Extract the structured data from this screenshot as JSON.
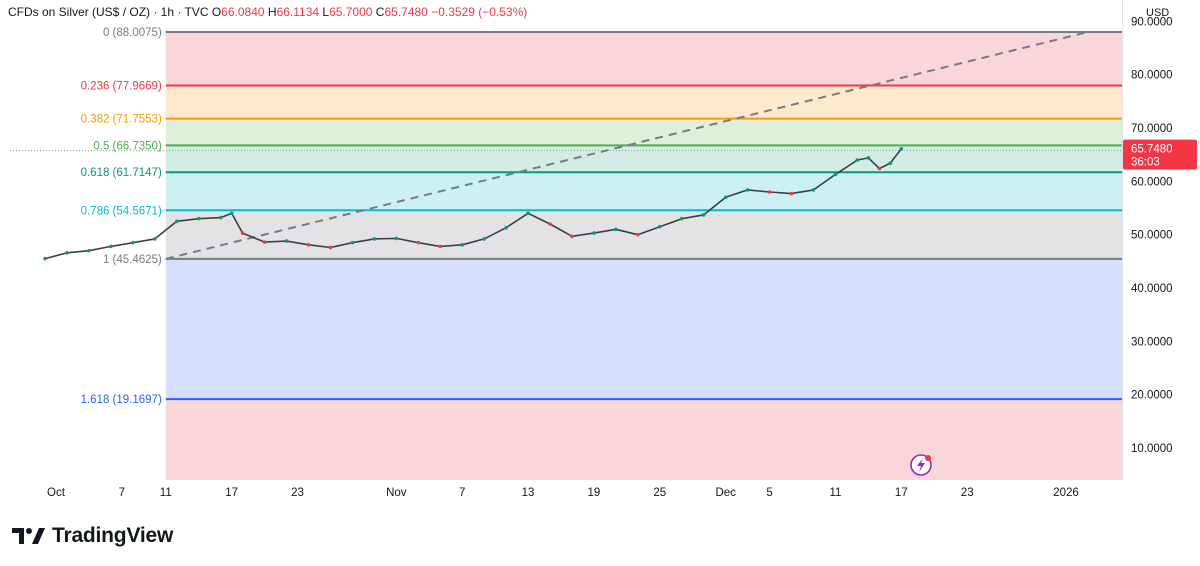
{
  "header": {
    "symbol": "CFDs on Silver (US$ / OZ) · 1h · TVC",
    "ohlc": [
      {
        "k": "O",
        "v": "66.0840"
      },
      {
        "k": "H",
        "v": "66.1134"
      },
      {
        "k": "L",
        "v": "65.7000"
      },
      {
        "k": "C",
        "v": "65.7480"
      }
    ],
    "change": "−0.3529 (−0.53%)"
  },
  "currency": "USD",
  "brand": {
    "name": "TradingView"
  },
  "last_price": {
    "value": "65.7480",
    "countdown": "36:03"
  },
  "colors": {
    "up": "#089981",
    "down": "#f23645",
    "axis_text": "#131722",
    "price_tag": "#f23645"
  },
  "chart_data": {
    "type": "line",
    "title": "",
    "ylim": [
      4,
      94
    ],
    "y_ticks": [
      "10.0000",
      "20.0000",
      "30.0000",
      "40.0000",
      "50.0000",
      "60.0000",
      "70.0000",
      "80.0000",
      "90.0000"
    ],
    "y_tick_values": [
      10,
      20,
      30,
      40,
      50,
      60,
      70,
      80,
      90
    ],
    "x_ticks": [
      "Oct",
      "7",
      "11",
      "17",
      "23",
      "Nov",
      "7",
      "13",
      "19",
      "25",
      "Dec",
      "5",
      "11",
      "17",
      "23",
      "2026"
    ],
    "x_tick_dates": [
      "2025-10-01",
      "2025-10-07",
      "2025-10-11",
      "2025-10-17",
      "2025-10-23",
      "2025-11-01",
      "2025-11-07",
      "2025-11-13",
      "2025-11-19",
      "2025-11-25",
      "2025-12-01",
      "2025-12-05",
      "2025-12-11",
      "2025-12-17",
      "2025-12-23",
      "2026-01-01"
    ],
    "fib_levels": [
      {
        "label": "0 (88.0075)",
        "price": 88.0075,
        "line": "#787b86",
        "fill": "#f8d6da"
      },
      {
        "label": "0.236 (77.9669)",
        "price": 77.9669,
        "line": "#f23645",
        "fill": "#ffe9cc"
      },
      {
        "label": "0.382 (71.7553)",
        "price": 71.7553,
        "line": "#ff9800",
        "fill": "#dff0da"
      },
      {
        "label": "0.5 (66.7350)",
        "price": 66.735,
        "line": "#4caf50",
        "fill": "#d3ece4"
      },
      {
        "label": "0.618 (61.7147)",
        "price": 61.7147,
        "line": "#089981",
        "fill": "#cdf1f3"
      },
      {
        "label": "0.786 (54.5671)",
        "price": 54.5671,
        "line": "#00bcd4",
        "fill": "#e3e3e5"
      },
      {
        "label": "1 (45.4625)",
        "price": 45.4625,
        "line": "#787b86",
        "fill": "#d6e0fd"
      },
      {
        "label": "1.618 (19.1697)",
        "price": 19.1697,
        "line": "#2962ff",
        "fill": "#f8d6da"
      }
    ],
    "fib_label_colors": [
      "#787b86",
      "#f23645",
      "#ff9800",
      "#4caf50",
      "#089981",
      "#00bcd4",
      "#787b86",
      "#2962ff"
    ],
    "trend_line": {
      "start": [
        "2025-10-11",
        45.46
      ],
      "end": [
        "2026-01-03",
        88.0
      ]
    },
    "series": [
      {
        "x": [
          "2025-09-30",
          "2025-10-02",
          "2025-10-04",
          "2025-10-06",
          "2025-10-08",
          "2025-10-10",
          "2025-10-12",
          "2025-10-14",
          "2025-10-16",
          "2025-10-17",
          "2025-10-18",
          "2025-10-20",
          "2025-10-22",
          "2025-10-24",
          "2025-10-26",
          "2025-10-28",
          "2025-10-30",
          "2025-11-01",
          "2025-11-03",
          "2025-11-05",
          "2025-11-07",
          "2025-11-09",
          "2025-11-11",
          "2025-11-13",
          "2025-11-15",
          "2025-11-17",
          "2025-11-19",
          "2025-11-21",
          "2025-11-23",
          "2025-11-25",
          "2025-11-27",
          "2025-11-29",
          "2025-12-01",
          "2025-12-03",
          "2025-12-05",
          "2025-12-07",
          "2025-12-09",
          "2025-12-11",
          "2025-12-13",
          "2025-12-14",
          "2025-12-15",
          "2025-12-16",
          "2025-12-17"
        ],
        "values": [
          45.5,
          46.6,
          47.0,
          47.8,
          48.5,
          49.2,
          52.5,
          53.0,
          53.2,
          54.0,
          50.3,
          48.6,
          48.8,
          48.1,
          47.6,
          48.5,
          49.2,
          49.3,
          48.5,
          47.8,
          48.1,
          49.2,
          51.3,
          54.0,
          52.0,
          49.7,
          50.3,
          51.0,
          50.0,
          51.5,
          53.0,
          53.7,
          57.0,
          58.4,
          58.0,
          57.7,
          58.4,
          61.3,
          64.0,
          64.4,
          62.4,
          63.4,
          66.1
        ]
      }
    ]
  }
}
